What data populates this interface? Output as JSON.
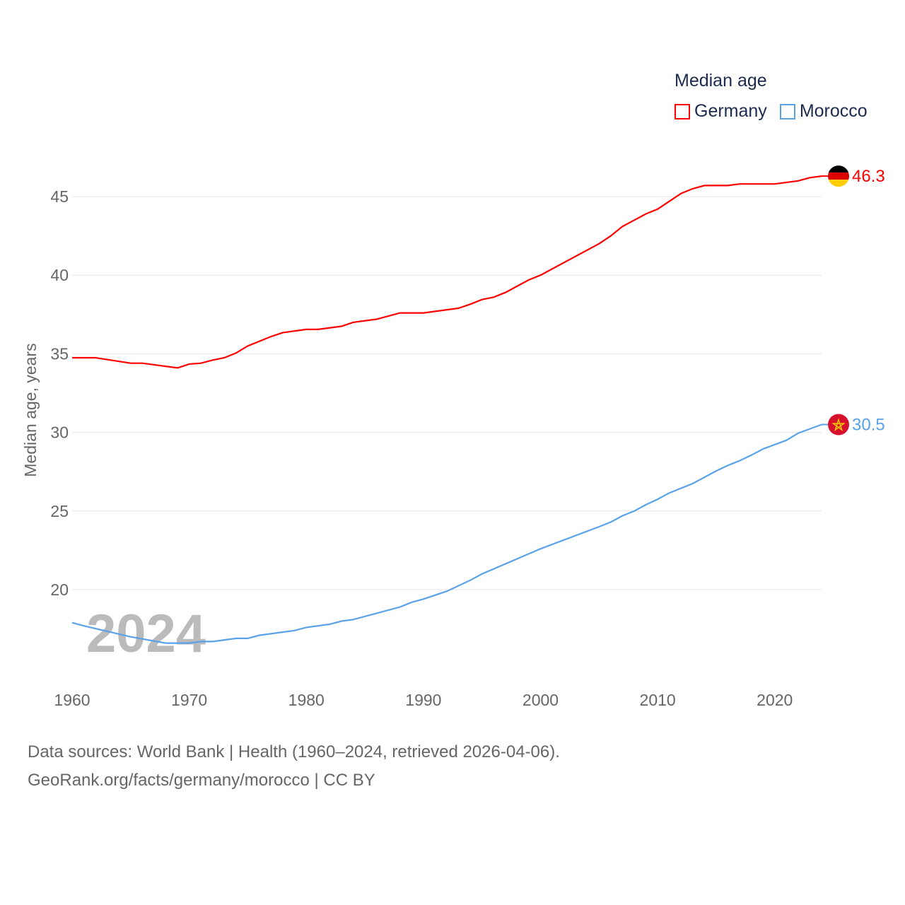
{
  "chart_data": {
    "type": "line",
    "title": "",
    "watermark_year": "2024",
    "ylabel": "Median age, years",
    "xlabel": "",
    "xlim": [
      1960,
      2024
    ],
    "ylim": [
      16.6,
      46.3
    ],
    "xticks": [
      "1960",
      "1970",
      "1980",
      "1990",
      "2000",
      "2010",
      "2020"
    ],
    "yticks": [
      "20",
      "25",
      "30",
      "35",
      "40",
      "45"
    ],
    "grid": true,
    "legend": {
      "title": "Median age",
      "placement": "top-right",
      "entries": [
        "Germany",
        "Morocco"
      ]
    },
    "series": [
      {
        "name": "Germany",
        "color": "#ff0000",
        "end_label": "46.3",
        "flag": "germany-flag",
        "points": [
          [
            1960,
            34.75
          ],
          [
            1962,
            34.75
          ],
          [
            1965,
            34.4
          ],
          [
            1966,
            34.4
          ],
          [
            1969,
            34.1
          ],
          [
            1970,
            34.35
          ],
          [
            1971,
            34.4
          ],
          [
            1972,
            34.6
          ],
          [
            1973,
            34.75
          ],
          [
            1974,
            35.05
          ],
          [
            1975,
            35.5
          ],
          [
            1977,
            36.1
          ],
          [
            1978,
            36.35
          ],
          [
            1980,
            36.55
          ],
          [
            1981,
            36.55
          ],
          [
            1983,
            36.75
          ],
          [
            1984,
            37.0
          ],
          [
            1986,
            37.2
          ],
          [
            1988,
            37.6
          ],
          [
            1990,
            37.6
          ],
          [
            1993,
            37.9
          ],
          [
            1994,
            38.15
          ],
          [
            1995,
            38.45
          ],
          [
            1996,
            38.6
          ],
          [
            1997,
            38.9
          ],
          [
            1999,
            39.7
          ],
          [
            2000,
            40.0
          ],
          [
            2005,
            42.0
          ],
          [
            2006,
            42.5
          ],
          [
            2007,
            43.1
          ],
          [
            2009,
            43.9
          ],
          [
            2010,
            44.2
          ],
          [
            2011,
            44.7
          ],
          [
            2012,
            45.2
          ],
          [
            2013,
            45.5
          ],
          [
            2014,
            45.7
          ],
          [
            2016,
            45.7
          ],
          [
            2017,
            45.8
          ],
          [
            2020,
            45.8
          ],
          [
            2022,
            46.0
          ],
          [
            2023,
            46.2
          ],
          [
            2024,
            46.3
          ]
        ]
      },
      {
        "name": "Morocco",
        "color": "#5aa2e8",
        "end_label": "30.5",
        "flag": "morocco-flag",
        "points": [
          [
            1960,
            17.9
          ],
          [
            1961,
            17.7
          ],
          [
            1963,
            17.35
          ],
          [
            1965,
            17.0
          ],
          [
            1968,
            16.6
          ],
          [
            1970,
            16.6
          ],
          [
            1971,
            16.7
          ],
          [
            1972,
            16.7
          ],
          [
            1974,
            16.9
          ],
          [
            1975,
            16.9
          ],
          [
            1976,
            17.1
          ],
          [
            1978,
            17.3
          ],
          [
            1979,
            17.4
          ],
          [
            1980,
            17.6
          ],
          [
            1982,
            17.8
          ],
          [
            1983,
            18.0
          ],
          [
            1984,
            18.1
          ],
          [
            1986,
            18.5
          ],
          [
            1988,
            18.9
          ],
          [
            1989,
            19.2
          ],
          [
            1990,
            19.4
          ],
          [
            1992,
            19.9
          ],
          [
            1994,
            20.6
          ],
          [
            1995,
            21.0
          ],
          [
            2000,
            22.6
          ],
          [
            2005,
            24.0
          ],
          [
            2006,
            24.3
          ],
          [
            2007,
            24.7
          ],
          [
            2008,
            25.0
          ],
          [
            2009,
            25.4
          ],
          [
            2010,
            25.75
          ],
          [
            2011,
            26.15
          ],
          [
            2013,
            26.75
          ],
          [
            2015,
            27.55
          ],
          [
            2016,
            27.9
          ],
          [
            2017,
            28.2
          ],
          [
            2018,
            28.55
          ],
          [
            2019,
            28.95
          ],
          [
            2021,
            29.5
          ],
          [
            2022,
            29.95
          ],
          [
            2024,
            30.5
          ]
        ]
      }
    ]
  },
  "footer": {
    "line1": "Data sources: World Bank | Health (1960–2024, retrieved 2026-04-06).",
    "line2": "GeoRank.org/facts/germany/morocco | CC BY"
  }
}
